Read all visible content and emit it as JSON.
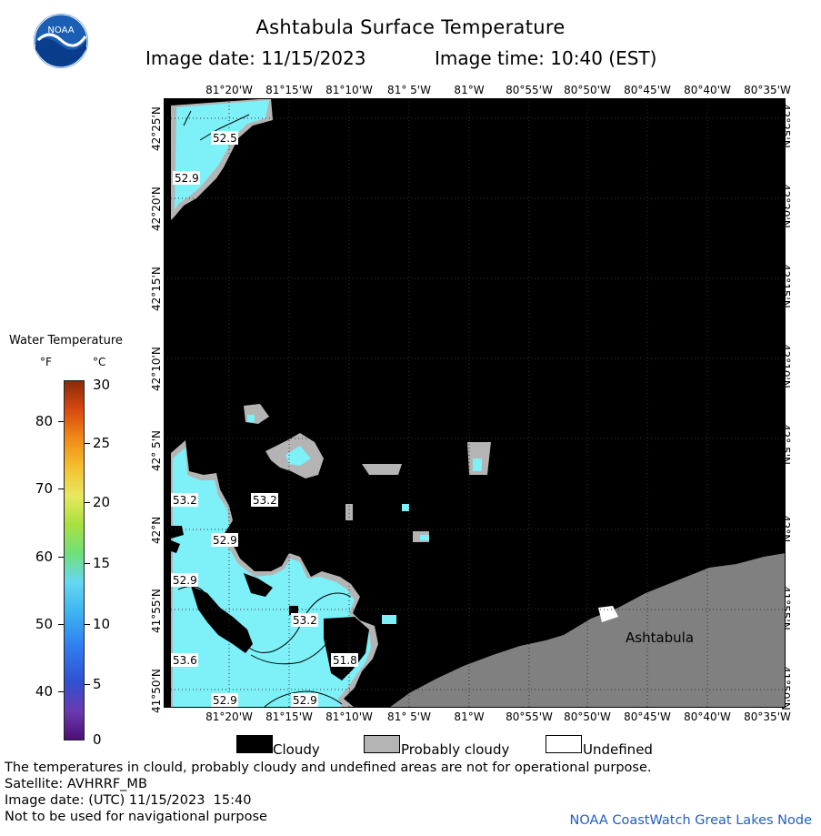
{
  "header": {
    "title": "Ashtabula Surface Temperature",
    "image_date_label": "Image date: 11/15/2023",
    "image_time_label": "Image time: 10:40 (EST)",
    "logo_text": "NOAA"
  },
  "map": {
    "lon_labels": [
      "81°20'W",
      "81°15'W",
      "81°10'W",
      "81° 5'W",
      "81°W",
      "80°55'W",
      "80°50'W",
      "80°45'W",
      "80°40'W",
      "80°35'W"
    ],
    "lat_labels": [
      "42°25'N",
      "42°20'N",
      "42°15'N",
      "42°10'N",
      "42° 5'N",
      "42°N",
      "41°55'N",
      "41°50'N"
    ],
    "place_label": "Ashtabula",
    "contour_labels": [
      "52.5",
      "52.9",
      "53.2",
      "53.2",
      "52.9",
      "52.9",
      "53.2",
      "53.6",
      "51.8",
      "52.9",
      "52.9"
    ],
    "colors": {
      "cloud": "#000000",
      "probably_cloudy": "#b4b4b4",
      "land": "#808080",
      "water": "#7ef0f8",
      "undefined": "#ffffff"
    }
  },
  "legend": {
    "title": "Water Temperature",
    "f_unit": "°F",
    "c_unit": "°C",
    "f_ticks": [
      "80",
      "70",
      "60",
      "50",
      "40"
    ],
    "c_ticks": [
      "30",
      "25",
      "20",
      "15",
      "10",
      "5",
      "0"
    ]
  },
  "key": {
    "cloudy": "Cloudy",
    "probably_cloudy": "Probably cloudy",
    "undefined": "Undefined"
  },
  "footer": {
    "note": "The temperatures in clould, probably cloudy and undefined areas are not for operational purpose.",
    "satellite": "Satellite: AVHRRF_MB",
    "utc_date": "Image date: (UTC) 11/15/2023  15:40",
    "navigation": "Not to be used for navigational purpose",
    "credit": "NOAA CoastWatch Great Lakes Node"
  }
}
